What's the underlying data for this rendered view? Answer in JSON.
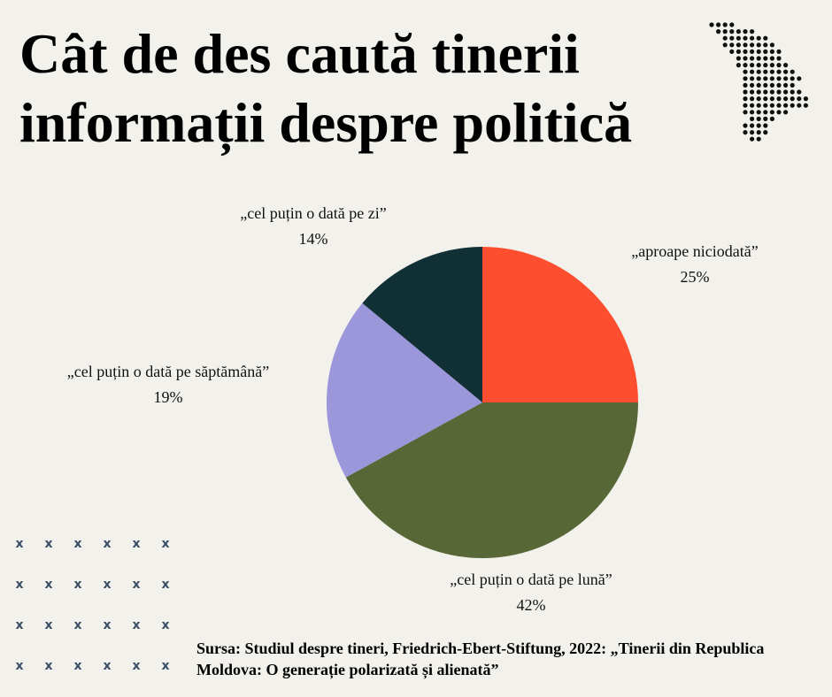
{
  "title": "Cât de des caută tinerii informații despre politică",
  "source": "Sursa: Studiul despre tineri, Friedrich-Ebert-Stiftung, 2022: „Tinerii din Republica Moldova: O generație polarizată și alienată”",
  "decorations": {
    "map_icon": "moldova-dot-map-icon",
    "pattern_icon": "x-mark-icon",
    "pattern_glyph": "x"
  },
  "chart_data": {
    "type": "pie",
    "title": "Cât de des caută tinerii informații despre politică",
    "slices": [
      {
        "label": "„aproape niciodată”",
        "value": 25,
        "display": "25%",
        "color": "#fd4f2f"
      },
      {
        "label": "„cel puțin o dată pe lună”",
        "value": 42,
        "display": "42%",
        "color": "#576736"
      },
      {
        "label": "„cel puțin o dată pe săptămână”",
        "value": 19,
        "display": "19%",
        "color": "#9c96db"
      },
      {
        "label": "„cel puțin o dată pe zi”",
        "value": 14,
        "display": "14%",
        "color": "#113035"
      }
    ]
  }
}
